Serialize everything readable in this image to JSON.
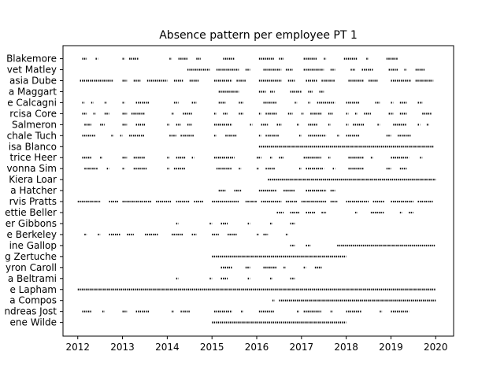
{
  "chart_data": {
    "type": "scatter",
    "title": "Absence pattern per employee PT 1",
    "xlabel": "",
    "ylabel": "",
    "x_ticks": [
      "2012",
      "2013",
      "2014",
      "2015",
      "2016",
      "2017",
      "2018",
      "2019",
      "2020"
    ],
    "xlim": [
      2011.67,
      2020.4
    ],
    "marker_color": "#000000",
    "grid": false,
    "series": [
      {
        "label": "Blakemore",
        "intervals": [
          [
            2012.1,
            2012.2
          ],
          [
            2012.4,
            2012.45
          ],
          [
            2013.0,
            2013.05
          ],
          [
            2013.15,
            2013.35
          ],
          [
            2014.05,
            2014.1
          ],
          [
            2014.25,
            2014.45
          ],
          [
            2014.65,
            2014.75
          ],
          [
            2015.25,
            2015.5
          ],
          [
            2016.05,
            2016.4
          ],
          [
            2016.5,
            2016.6
          ],
          [
            2017.05,
            2017.35
          ],
          [
            2017.5,
            2017.55
          ],
          [
            2017.95,
            2018.25
          ],
          [
            2018.45,
            2018.5
          ],
          [
            2018.9,
            2019.15
          ]
        ]
      },
      {
        "label": "vet Matley",
        "intervals": [
          [
            2014.45,
            2014.95
          ],
          [
            2015.1,
            2015.6
          ],
          [
            2015.75,
            2015.85
          ],
          [
            2016.15,
            2016.55
          ],
          [
            2016.65,
            2016.8
          ],
          [
            2017.05,
            2017.5
          ],
          [
            2017.65,
            2017.75
          ],
          [
            2018.1,
            2018.2
          ],
          [
            2018.35,
            2018.6
          ],
          [
            2018.95,
            2019.15
          ],
          [
            2019.3,
            2019.35
          ],
          [
            2019.55,
            2019.75
          ]
        ]
      },
      {
        "label": "asia Dube",
        "intervals": [
          [
            2012.05,
            2012.8
          ],
          [
            2013.0,
            2013.1
          ],
          [
            2013.25,
            2013.4
          ],
          [
            2013.55,
            2014.0
          ],
          [
            2014.15,
            2014.35
          ],
          [
            2014.5,
            2014.7
          ],
          [
            2015.05,
            2015.45
          ],
          [
            2015.55,
            2015.75
          ],
          [
            2016.05,
            2016.55
          ],
          [
            2016.7,
            2016.85
          ],
          [
            2017.1,
            2017.35
          ],
          [
            2017.45,
            2017.75
          ],
          [
            2018.05,
            2018.4
          ],
          [
            2018.5,
            2018.7
          ],
          [
            2019.0,
            2019.45
          ],
          [
            2019.55,
            2019.95
          ]
        ]
      },
      {
        "label": "a Maggart",
        "intervals": [
          [
            2015.15,
            2015.6
          ],
          [
            2016.05,
            2016.2
          ],
          [
            2016.3,
            2016.4
          ],
          [
            2016.75,
            2017.0
          ],
          [
            2017.15,
            2017.25
          ],
          [
            2017.4,
            2017.5
          ]
        ]
      },
      {
        "label": "e Calcagni",
        "intervals": [
          [
            2012.1,
            2012.15
          ],
          [
            2012.3,
            2012.35
          ],
          [
            2012.6,
            2012.65
          ],
          [
            2013.0,
            2013.05
          ],
          [
            2013.3,
            2013.6
          ],
          [
            2014.15,
            2014.25
          ],
          [
            2014.55,
            2014.65
          ],
          [
            2015.15,
            2015.3
          ],
          [
            2015.6,
            2015.7
          ],
          [
            2016.15,
            2016.45
          ],
          [
            2016.85,
            2016.9
          ],
          [
            2017.15,
            2017.2
          ],
          [
            2017.35,
            2017.75
          ],
          [
            2018.0,
            2018.3
          ],
          [
            2018.65,
            2018.75
          ],
          [
            2019.0,
            2019.05
          ],
          [
            2019.2,
            2019.35
          ],
          [
            2019.6,
            2019.7
          ]
        ]
      },
      {
        "label": "rcisa Core",
        "intervals": [
          [
            2012.1,
            2012.2
          ],
          [
            2012.35,
            2012.4
          ],
          [
            2012.6,
            2012.7
          ],
          [
            2013.0,
            2013.1
          ],
          [
            2013.2,
            2013.5
          ],
          [
            2014.1,
            2014.15
          ],
          [
            2014.35,
            2014.55
          ],
          [
            2015.05,
            2015.1
          ],
          [
            2015.25,
            2015.35
          ],
          [
            2015.6,
            2015.7
          ],
          [
            2016.05,
            2016.1
          ],
          [
            2016.2,
            2016.45
          ],
          [
            2016.7,
            2016.8
          ],
          [
            2017.0,
            2017.05
          ],
          [
            2017.2,
            2017.45
          ],
          [
            2017.6,
            2017.7
          ],
          [
            2018.0,
            2018.05
          ],
          [
            2018.2,
            2018.25
          ],
          [
            2018.4,
            2018.55
          ],
          [
            2018.95,
            2019.05
          ],
          [
            2019.2,
            2019.35
          ],
          [
            2019.7,
            2019.9
          ]
        ]
      },
      {
        "label": "Salmeron",
        "intervals": [
          [
            2012.15,
            2012.3
          ],
          [
            2012.5,
            2012.6
          ],
          [
            2013.0,
            2013.1
          ],
          [
            2013.3,
            2013.5
          ],
          [
            2014.0,
            2014.05
          ],
          [
            2014.2,
            2014.3
          ],
          [
            2014.45,
            2014.55
          ],
          [
            2015.05,
            2015.45
          ],
          [
            2015.85,
            2015.9
          ],
          [
            2016.1,
            2016.25
          ],
          [
            2016.45,
            2016.55
          ],
          [
            2016.9,
            2016.95
          ],
          [
            2017.15,
            2017.35
          ],
          [
            2017.6,
            2017.65
          ],
          [
            2018.0,
            2018.05
          ],
          [
            2018.15,
            2018.4
          ],
          [
            2018.7,
            2018.75
          ],
          [
            2019.05,
            2019.35
          ],
          [
            2019.6,
            2019.65
          ],
          [
            2019.8,
            2019.85
          ]
        ]
      },
      {
        "label": "chale Tuch",
        "intervals": [
          [
            2012.1,
            2012.4
          ],
          [
            2012.75,
            2012.8
          ],
          [
            2012.95,
            2013.0
          ],
          [
            2013.15,
            2013.5
          ],
          [
            2014.05,
            2014.2
          ],
          [
            2014.3,
            2014.6
          ],
          [
            2015.05,
            2015.1
          ],
          [
            2015.3,
            2015.55
          ],
          [
            2016.05,
            2016.1
          ],
          [
            2016.2,
            2016.5
          ],
          [
            2016.95,
            2017.0
          ],
          [
            2017.15,
            2017.55
          ],
          [
            2017.8,
            2017.85
          ],
          [
            2018.0,
            2018.3
          ],
          [
            2018.9,
            2019.0
          ],
          [
            2019.15,
            2019.45
          ]
        ]
      },
      {
        "label": "isa Blanco",
        "intervals": [
          [
            2016.05,
            2019.95
          ]
        ]
      },
      {
        "label": "trice Heer",
        "intervals": [
          [
            2012.1,
            2012.3
          ],
          [
            2012.5,
            2012.55
          ],
          [
            2013.0,
            2013.1
          ],
          [
            2013.25,
            2013.5
          ],
          [
            2014.0,
            2014.05
          ],
          [
            2014.2,
            2014.4
          ],
          [
            2014.55,
            2014.6
          ],
          [
            2015.05,
            2015.5
          ],
          [
            2016.0,
            2016.1
          ],
          [
            2016.3,
            2016.35
          ],
          [
            2016.5,
            2016.6
          ],
          [
            2017.05,
            2017.45
          ],
          [
            2017.6,
            2017.65
          ],
          [
            2018.05,
            2018.4
          ],
          [
            2018.55,
            2018.6
          ],
          [
            2019.0,
            2019.4
          ],
          [
            2019.65,
            2019.7
          ]
        ]
      },
      {
        "label": "vonna Sim",
        "intervals": [
          [
            2012.15,
            2012.45
          ],
          [
            2012.65,
            2012.7
          ],
          [
            2013.0,
            2013.05
          ],
          [
            2013.25,
            2013.55
          ],
          [
            2014.0,
            2014.05
          ],
          [
            2014.15,
            2014.4
          ],
          [
            2015.1,
            2015.45
          ],
          [
            2015.6,
            2015.65
          ],
          [
            2016.0,
            2016.05
          ],
          [
            2016.2,
            2016.4
          ],
          [
            2016.95,
            2017.0
          ],
          [
            2017.1,
            2017.5
          ],
          [
            2017.7,
            2017.75
          ],
          [
            2018.05,
            2018.4
          ],
          [
            2018.9,
            2019.0
          ],
          [
            2019.2,
            2019.35
          ]
        ]
      },
      {
        "label": "Kiera Loar",
        "intervals": [
          [
            2016.25,
            2020.0
          ]
        ]
      },
      {
        "label": "a Hatcher",
        "intervals": [
          [
            2015.15,
            2015.3
          ],
          [
            2015.5,
            2015.65
          ],
          [
            2016.05,
            2016.45
          ],
          [
            2016.6,
            2016.85
          ],
          [
            2017.1,
            2017.55
          ],
          [
            2017.65,
            2017.75
          ]
        ]
      },
      {
        "label": "rvis Pratts",
        "intervals": [
          [
            2012.0,
            2012.5
          ],
          [
            2012.7,
            2012.9
          ],
          [
            2013.0,
            2013.65
          ],
          [
            2013.75,
            2014.1
          ],
          [
            2014.2,
            2014.5
          ],
          [
            2014.6,
            2014.8
          ],
          [
            2015.0,
            2015.6
          ],
          [
            2015.75,
            2016.0
          ],
          [
            2016.1,
            2016.55
          ],
          [
            2016.65,
            2016.9
          ],
          [
            2017.0,
            2017.55
          ],
          [
            2017.65,
            2017.8
          ],
          [
            2018.0,
            2018.5
          ],
          [
            2018.6,
            2018.85
          ],
          [
            2019.0,
            2019.5
          ],
          [
            2019.6,
            2019.95
          ]
        ]
      },
      {
        "label": "ettie Beller",
        "intervals": [
          [
            2016.45,
            2016.6
          ],
          [
            2016.75,
            2016.95
          ],
          [
            2017.1,
            2017.3
          ],
          [
            2017.45,
            2017.55
          ],
          [
            2018.2,
            2018.25
          ],
          [
            2018.55,
            2018.85
          ],
          [
            2019.2,
            2019.25
          ],
          [
            2019.4,
            2019.5
          ]
        ]
      },
      {
        "label": "er Gibbons",
        "intervals": [
          [
            2014.2,
            2014.25
          ],
          [
            2014.95,
            2015.0
          ],
          [
            2015.2,
            2015.35
          ],
          [
            2015.8,
            2015.85
          ],
          [
            2016.3,
            2016.35
          ],
          [
            2016.75,
            2016.85
          ]
        ]
      },
      {
        "label": "e Berkeley",
        "intervals": [
          [
            2012.15,
            2012.2
          ],
          [
            2012.45,
            2012.5
          ],
          [
            2012.7,
            2012.95
          ],
          [
            2013.1,
            2013.25
          ],
          [
            2013.5,
            2013.8
          ],
          [
            2014.1,
            2014.35
          ],
          [
            2014.55,
            2014.65
          ],
          [
            2015.0,
            2015.15
          ],
          [
            2015.35,
            2015.55
          ],
          [
            2016.0,
            2016.05
          ],
          [
            2016.15,
            2016.25
          ],
          [
            2016.65,
            2016.7
          ]
        ]
      },
      {
        "label": "ine Gallop",
        "intervals": [
          [
            2016.75,
            2016.85
          ],
          [
            2017.1,
            2017.2
          ],
          [
            2017.8,
            2020.0
          ]
        ]
      },
      {
        "label": "g Zertuche",
        "intervals": [
          [
            2015.0,
            2018.0
          ]
        ]
      },
      {
        "label": "yron Caroll",
        "intervals": [
          [
            2015.2,
            2015.45
          ],
          [
            2015.75,
            2015.85
          ],
          [
            2016.15,
            2016.45
          ],
          [
            2016.6,
            2016.65
          ],
          [
            2017.05,
            2017.1
          ],
          [
            2017.3,
            2017.45
          ]
        ]
      },
      {
        "label": "a Beltrami",
        "intervals": [
          [
            2014.2,
            2014.25
          ],
          [
            2014.95,
            2015.0
          ],
          [
            2015.2,
            2015.35
          ],
          [
            2015.8,
            2015.85
          ],
          [
            2016.3,
            2016.35
          ],
          [
            2016.75,
            2016.85
          ]
        ]
      },
      {
        "label": "e Lapham",
        "intervals": [
          [
            2012.0,
            2020.0
          ]
        ]
      },
      {
        "label": "a Compos",
        "intervals": [
          [
            2016.35,
            2016.4
          ],
          [
            2016.5,
            2020.0
          ]
        ]
      },
      {
        "label": "ndreas Jost",
        "intervals": [
          [
            2012.1,
            2012.3
          ],
          [
            2012.55,
            2012.6
          ],
          [
            2013.0,
            2013.1
          ],
          [
            2013.3,
            2013.6
          ],
          [
            2014.1,
            2014.15
          ],
          [
            2014.3,
            2014.5
          ],
          [
            2015.05,
            2015.45
          ],
          [
            2015.65,
            2015.7
          ],
          [
            2016.05,
            2016.4
          ],
          [
            2016.9,
            2016.95
          ],
          [
            2017.05,
            2017.45
          ],
          [
            2017.65,
            2017.7
          ],
          [
            2018.0,
            2018.35
          ],
          [
            2018.75,
            2018.8
          ],
          [
            2019.0,
            2019.4
          ]
        ]
      },
      {
        "label": "ene Wilde",
        "intervals": [
          [
            2015.0,
            2018.0
          ]
        ]
      }
    ]
  }
}
